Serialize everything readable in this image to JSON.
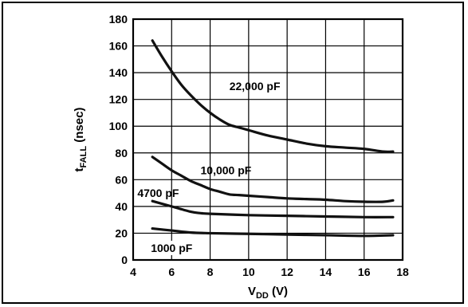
{
  "chart_data": {
    "type": "line",
    "xlabel": {
      "main": "V",
      "sub": "DD",
      "unit": " (V)"
    },
    "ylabel": {
      "main": "t",
      "sub": "FALL",
      "unit": " (nsec)"
    },
    "xlim": [
      4,
      18
    ],
    "ylim": [
      0,
      180
    ],
    "xticks": [
      4,
      6,
      8,
      10,
      12,
      14,
      16,
      18
    ],
    "yticks": [
      0,
      20,
      40,
      60,
      80,
      100,
      120,
      140,
      160,
      180
    ],
    "grid": true,
    "series": [
      {
        "name": "22,000 pF",
        "x": [
          5,
          5.5,
          6,
          6.5,
          7,
          7.5,
          8,
          8.5,
          9,
          9.5,
          10,
          11,
          12,
          13,
          14,
          15,
          16,
          17,
          17.5
        ],
        "y": [
          164,
          152,
          141,
          131,
          123,
          116,
          110,
          105,
          101,
          99,
          97,
          93,
          90,
          87,
          85,
          84,
          83,
          81,
          81
        ]
      },
      {
        "name": "10,000 pF",
        "x": [
          5,
          5.5,
          6,
          6.5,
          7,
          7.5,
          8,
          8.5,
          9,
          9.5,
          10,
          11,
          12,
          13,
          14,
          15,
          16,
          17,
          17.5
        ],
        "y": [
          77,
          72,
          67,
          63,
          59,
          56,
          53,
          51,
          49,
          48.5,
          48,
          47,
          46,
          45.5,
          45,
          44,
          43.5,
          43.5,
          44.5
        ]
      },
      {
        "name": "4700 pF",
        "x": [
          5,
          6,
          7,
          7.5,
          8,
          10,
          12,
          14,
          16,
          17.5
        ],
        "y": [
          44,
          40,
          36,
          35,
          34.5,
          33.5,
          33,
          32.5,
          32,
          32
        ]
      },
      {
        "name": "1000 pF",
        "x": [
          5,
          6,
          7,
          8,
          10,
          12,
          14,
          16,
          17.5
        ],
        "y": [
          23.5,
          22,
          20.5,
          20,
          19.5,
          19,
          18.5,
          18,
          18.5
        ]
      }
    ]
  }
}
